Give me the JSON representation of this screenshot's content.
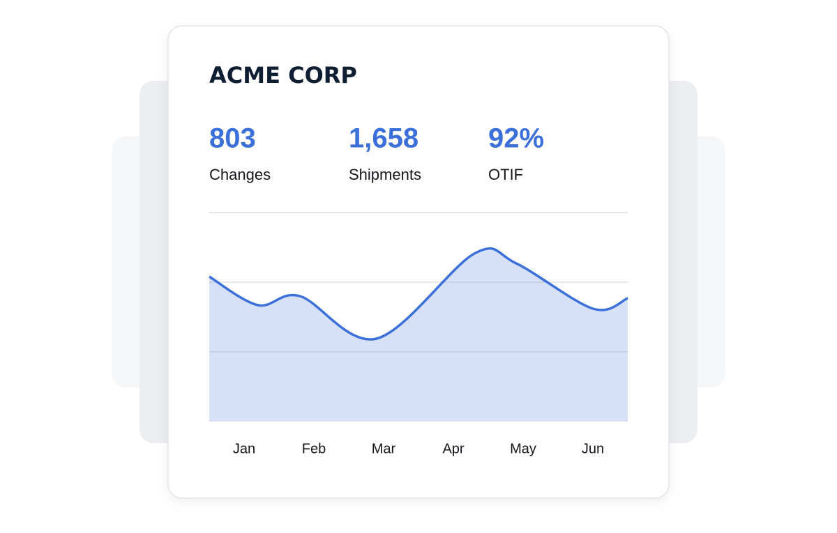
{
  "header": {
    "title": "ACME CORP"
  },
  "stats": [
    {
      "value": "803",
      "label": "Changes"
    },
    {
      "value": "1,658",
      "label": "Shipments"
    },
    {
      "value": "92%",
      "label": "OTIF"
    }
  ],
  "chart_data": {
    "type": "area",
    "x": [
      0,
      0.7,
      1.3,
      2.4,
      3.8,
      4.4,
      5.5,
      6
    ],
    "values": [
      2.08,
      1.67,
      1.8,
      1.19,
      2.41,
      2.27,
      1.62,
      1.77
    ],
    "color": "#3b6fd9",
    "fill": "#d6e1f8",
    "xlim": [
      0,
      6
    ],
    "xticks": [
      {
        "value": 0.5,
        "label": "Jan"
      },
      {
        "value": 1.5,
        "label": "Feb"
      },
      {
        "value": 2.5,
        "label": "Mar"
      },
      {
        "value": 3.5,
        "label": "Apr"
      },
      {
        "value": 4.5,
        "label": "May"
      },
      {
        "value": 5.5,
        "label": "Jun"
      }
    ],
    "ylim": [
      0,
      3
    ],
    "yticks": [
      1,
      2,
      3
    ],
    "grid": true
  }
}
